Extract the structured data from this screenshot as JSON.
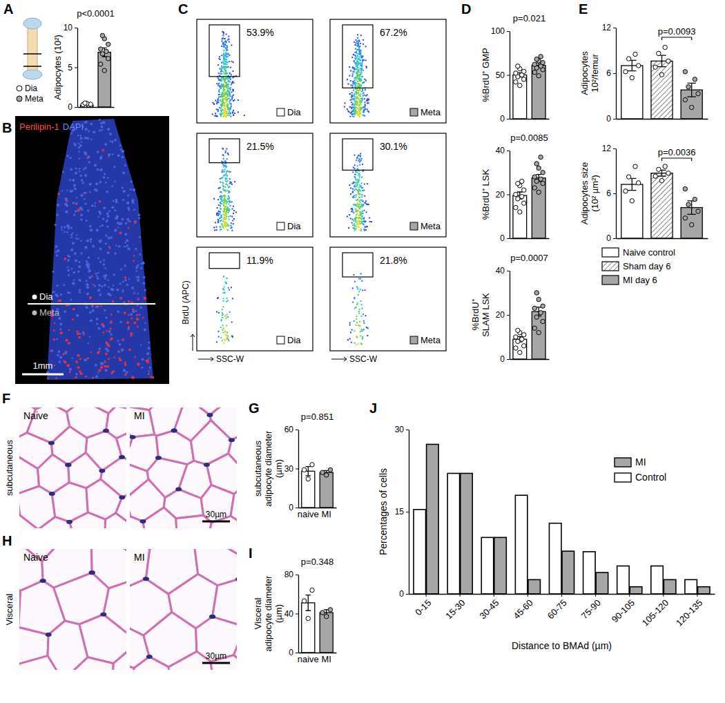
{
  "chart_data": [
    {
      "panel": "A",
      "type": "bar",
      "ylabel": [
        "Adipocytes (10²)"
      ],
      "categories": [
        null,
        null
      ],
      "legend_labels": [
        "Dia",
        "Meta"
      ],
      "values": [
        0.25,
        6.9
      ],
      "errors": [
        0.05,
        0.55
      ],
      "points": [
        [
          0.05,
          0.1,
          0.15,
          0.2,
          0.25,
          0.3,
          0.35,
          0.45,
          0.5
        ],
        [
          4.6,
          5.4,
          6.1,
          6.7,
          7.0,
          7.3,
          7.9,
          8.6,
          9.0
        ]
      ],
      "colors": [
        "#ffffff",
        "#a6a6a6"
      ],
      "ylim": [
        0,
        10
      ],
      "yticks": [
        0,
        5,
        10
      ],
      "annotations": [
        "p<0.0001"
      ]
    },
    {
      "panel": "B",
      "type": "image",
      "stains": [
        "Perilipin-1",
        "DAPI"
      ],
      "regions": [
        "Dia",
        "Meta"
      ],
      "scale_bar": "1mm"
    },
    {
      "panel": "C",
      "type": "flow",
      "xlabel": "SSC-W",
      "ylabel": "BrdU (APC)",
      "columns": [
        "Dia",
        "Meta"
      ],
      "values": [
        [
          53.9,
          67.2
        ],
        [
          21.5,
          30.1
        ],
        [
          11.9,
          21.8
        ]
      ],
      "value_labels": [
        [
          "53.9%",
          "67.2%"
        ],
        [
          "21.5%",
          "30.1%"
        ],
        [
          "11.9%",
          "21.8%"
        ]
      ],
      "colors": [
        "#ffffff",
        "#a6a6a6"
      ]
    },
    {
      "panel": "D",
      "type": "bar",
      "ylabel": [
        "%BrdU⁺ GMP"
      ],
      "categories": [
        null,
        null
      ],
      "values": [
        50,
        61
      ],
      "errors": [
        2.5,
        2.8
      ],
      "points": [
        [
          38,
          42,
          45,
          48,
          50,
          52,
          54,
          57,
          60
        ],
        [
          49,
          53,
          56,
          58,
          60,
          62,
          64,
          66,
          68,
          71
        ]
      ],
      "colors": [
        "#ffffff",
        "#a6a6a6"
      ],
      "ylim": [
        0,
        100
      ],
      "yticks": [
        0,
        50,
        100
      ],
      "annotations": [
        "p=0.021"
      ]
    },
    {
      "type": "bar",
      "ylabel": [
        "%BrdU⁺ LSK"
      ],
      "categories": [
        null,
        null
      ],
      "values": [
        19.5,
        27.5
      ],
      "errors": [
        1.6,
        1.6
      ],
      "points": [
        [
          12,
          14,
          16,
          18,
          19,
          20,
          22,
          24,
          25,
          26
        ],
        [
          21,
          23,
          25,
          26,
          27,
          28,
          30,
          32,
          34,
          37
        ]
      ],
      "colors": [
        "#ffffff",
        "#a6a6a6"
      ],
      "ylim": [
        0,
        40
      ],
      "yticks": [
        0,
        20,
        40
      ],
      "annotations": [
        "p=0.0085"
      ]
    },
    {
      "type": "bar",
      "ylabel": [
        "%BrdU⁺",
        "SLAM LSK"
      ],
      "categories": [
        null,
        null
      ],
      "values": [
        9,
        21.5
      ],
      "errors": [
        1.2,
        2.0
      ],
      "points": [
        [
          3,
          5,
          6,
          8,
          9,
          10,
          11,
          12,
          13
        ],
        [
          12,
          14,
          17,
          19,
          21,
          23,
          24,
          27,
          30
        ]
      ],
      "colors": [
        "#ffffff",
        "#a6a6a6"
      ],
      "ylim": [
        0,
        40
      ],
      "yticks": [
        0,
        20,
        40
      ],
      "annotations": [
        "p=0.0007"
      ]
    },
    {
      "panel": "E",
      "type": "bar",
      "ylabel": [
        "Adipocytes",
        "10²/femur"
      ],
      "categories": [
        null,
        null,
        null
      ],
      "values": [
        7,
        7.6,
        3.8
      ],
      "errors": [
        0.7,
        0.75,
        0.9
      ],
      "points": [
        [
          5.4,
          6.2,
          7,
          7.9,
          8.5
        ],
        [
          5.8,
          6.8,
          7.6,
          8.6,
          9.4
        ],
        [
          1.5,
          2.5,
          3.3,
          4.2,
          5.2,
          6.2
        ]
      ],
      "colors": [
        "#ffffff",
        "#ffffff",
        "#a6a6a6"
      ],
      "ylim": [
        0,
        12
      ],
      "yticks": [
        0,
        6,
        12
      ],
      "annotations": [
        "p=0.0093"
      ]
    },
    {
      "type": "bar",
      "ylabel": [
        "Adipocytes size",
        "(10² µm²)"
      ],
      "categories": [
        null,
        null,
        null
      ],
      "legend_labels": [
        "Naive control",
        "Sham day 6",
        "MI day 6"
      ],
      "values": [
        7.2,
        8.7,
        4.1
      ],
      "errors": [
        0.8,
        0.4,
        0.9
      ],
      "points": [
        [
          5,
          6.3,
          7.4,
          8.2,
          9.6
        ],
        [
          7.7,
          8.3,
          8.7,
          9.2,
          9.6
        ],
        [
          1.8,
          2.7,
          3.6,
          4.5,
          5.2,
          6.6
        ]
      ],
      "colors": [
        "#ffffff",
        "#ffffff",
        "#a6a6a6"
      ],
      "ylim": [
        0,
        12
      ],
      "yticks": [
        0,
        6,
        12
      ],
      "annotations": [
        "p=0.0036"
      ]
    },
    {
      "panel": "F",
      "type": "image",
      "tissue": "subcutaneous",
      "groups": [
        "Naive",
        "MI"
      ],
      "scale_bar": "30µm"
    },
    {
      "panel": "G",
      "type": "bar",
      "ylabel": [
        "subcutaneous",
        "adipocyte diameter",
        "(µm)"
      ],
      "categories": [
        "naive",
        "MI"
      ],
      "values": [
        28,
        27
      ],
      "errors": [
        3.5,
        1.5
      ],
      "points": [
        [
          22,
          29,
          33
        ],
        [
          25,
          27,
          29
        ]
      ],
      "colors": [
        "#ffffff",
        "#a6a6a6"
      ],
      "ylim": [
        0,
        60
      ],
      "yticks": [
        0,
        30,
        60
      ],
      "annotations": [
        "p=0.851"
      ]
    },
    {
      "panel": "H",
      "type": "image",
      "tissue": "Visceral",
      "groups": [
        "Naive",
        "MI"
      ],
      "scale_bar": "30µm"
    },
    {
      "panel": "I",
      "type": "bar",
      "ylabel": [
        "Visceral",
        "adipocyte diameter",
        "(µm)"
      ],
      "categories": [
        "naive",
        "MI"
      ],
      "values": [
        51,
        41
      ],
      "errors": [
        8,
        3
      ],
      "points": [
        [
          35,
          53,
          64
        ],
        [
          37,
          41,
          44
        ]
      ],
      "colors": [
        "#ffffff",
        "#a6a6a6"
      ],
      "ylim": [
        0,
        80
      ],
      "yticks": [
        0,
        40,
        80
      ],
      "annotations": [
        "p=0.348"
      ]
    },
    {
      "panel": "J",
      "type": "bar",
      "ylabel": "Percentages of cells",
      "xlabel": "Distance to BMAd (µm)",
      "categories": [
        "0-15",
        "15-30",
        "30-45",
        "45-60",
        "60-75",
        "75-90",
        "90-105",
        "105-120",
        "120-135"
      ],
      "series": [
        {
          "name": "MI",
          "color": "#a6a6a6",
          "values": [
            27.3,
            22,
            10.3,
            2.6,
            7.8,
            3.9,
            1.3,
            2.6,
            1.3
          ]
        },
        {
          "name": "Control",
          "color": "#ffffff",
          "values": [
            15.4,
            22,
            10.3,
            18,
            12.9,
            7.7,
            5.1,
            5.1,
            2.6
          ]
        }
      ],
      "ylim": [
        0,
        30
      ],
      "yticks": [
        0,
        15,
        30
      ]
    }
  ]
}
